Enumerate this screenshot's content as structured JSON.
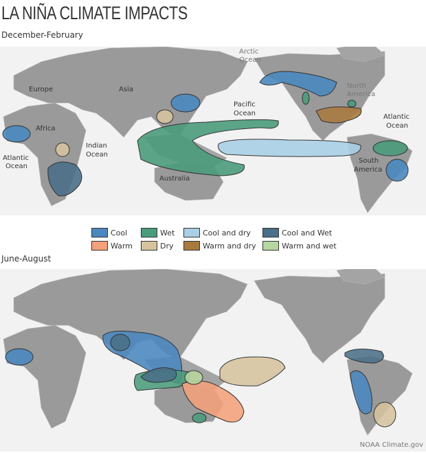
{
  "title": "LA NIÑA CLIMATE IMPACTS",
  "seasons": [
    "December-February",
    "June-August"
  ],
  "map_labels": {
    "europe": "Europe",
    "asia": "Asia",
    "africa": "Africa",
    "atlantic_w": [
      "Atlantic",
      "Ocean"
    ],
    "indian": [
      "Indian",
      "Ocean"
    ],
    "australia": "Australia",
    "pacific": [
      "Pacific",
      "Ocean"
    ],
    "arctic": [
      "Arctic",
      "Ocean"
    ],
    "north_america": [
      "North",
      "America"
    ],
    "atlantic_e": [
      "Atlantic",
      "Ocean"
    ],
    "south_america": [
      "South",
      "America"
    ]
  },
  "legend": [
    {
      "label": "Cool",
      "color": "#4a88bf"
    },
    {
      "label": "Wet",
      "color": "#4a9b7c"
    },
    {
      "label": "Cool and dry",
      "color": "#a8cfe6"
    },
    {
      "label": "Cool and Wet",
      "color": "#4a6f88"
    },
    {
      "label": "Warm",
      "color": "#f4a07a"
    },
    {
      "label": "Dry",
      "color": "#d6c39e"
    },
    {
      "label": "Warm and dry",
      "color": "#a87a40"
    },
    {
      "label": "Warm and wet",
      "color": "#b6d79e"
    }
  ],
  "credit": "NOAA Climate.gov"
}
